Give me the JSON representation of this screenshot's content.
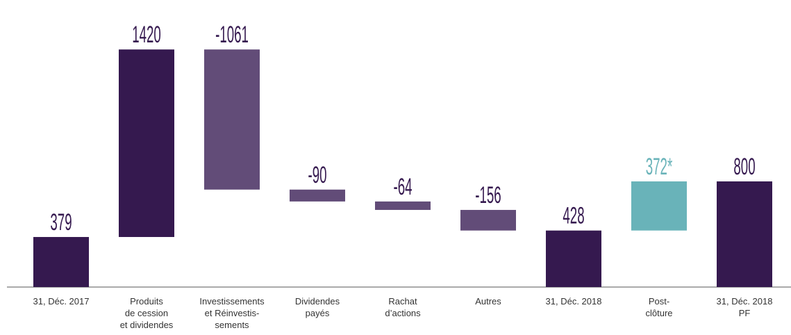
{
  "chart_data": {
    "type": "waterfall",
    "categories": [
      "31, Déc. 2017",
      "Produits\nde cession\net dividendes",
      "Investissements\net Réinvestis-\nsements",
      "Dividendes\npayés",
      "Rachat\nd’actions",
      "Autres",
      "31, Déc. 2018",
      "Post-\nclôture",
      "31, Déc. 2018\nPF"
    ],
    "values": [
      379,
      1420,
      -1061,
      -90,
      -64,
      -156,
      428,
      372,
      800
    ],
    "value_labels": [
      "379",
      "1420",
      "-1061",
      "-90",
      "-64",
      "-156",
      "428",
      "372*",
      "800"
    ],
    "colors": [
      "#35194f",
      "#35194f",
      "#624c78",
      "#624c78",
      "#624c78",
      "#624c78",
      "#35194f",
      "#69b3b9",
      "#35194f"
    ]
  }
}
